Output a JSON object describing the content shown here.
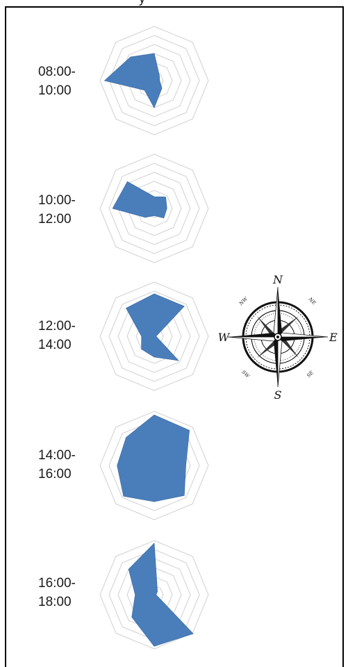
{
  "header_fragment": "y",
  "compass": {
    "labels": {
      "N": "N",
      "E": "E",
      "S": "S",
      "W": "W",
      "NE": "NE",
      "SE": "SE",
      "SW": "SW",
      "NW": "NW"
    }
  },
  "chart_data": [
    {
      "type": "radar",
      "period_line1": "08:00-",
      "period_line2": "10:00",
      "axes": [
        "N",
        "NE",
        "E",
        "SE",
        "S",
        "SW",
        "W",
        "NW"
      ],
      "rmax": 6,
      "values": [
        3.0,
        0.8,
        0.6,
        1.2,
        3.0,
        1.5,
        5.5,
        3.7
      ],
      "color": "#4a7ebb"
    },
    {
      "type": "radar",
      "period_line1": "10:00-",
      "period_line2": "12:00",
      "axes": [
        "N",
        "NE",
        "E",
        "SE",
        "S",
        "SW",
        "W",
        "NW"
      ],
      "rmax": 6,
      "values": [
        1.3,
        1.8,
        1.4,
        1.5,
        0.8,
        1.4,
        4.6,
        4.2
      ],
      "color": "#4a7ebb"
    },
    {
      "type": "radar",
      "period_line1": "12:00-",
      "period_line2": "14:00",
      "axes": [
        "N",
        "NE",
        "E",
        "SE",
        "S",
        "SW",
        "W",
        "NW"
      ],
      "rmax": 6,
      "values": [
        4.7,
        4.7,
        0.2,
        3.8,
        2.3,
        2.0,
        1.4,
        4.4
      ],
      "color": "#4a7ebb"
    },
    {
      "type": "radar",
      "period_line1": "14:00-",
      "period_line2": "16:00",
      "axes": [
        "N",
        "NE",
        "E",
        "SE",
        "S",
        "SW",
        "W",
        "NW"
      ],
      "rmax": 6,
      "values": [
        5.6,
        5.5,
        3.5,
        4.7,
        4.0,
        4.8,
        4.1,
        4.4
      ],
      "color": "#4a7ebb"
    },
    {
      "type": "radar",
      "period_line1": "16:00-",
      "period_line2": "18:00",
      "axes": [
        "N",
        "NE",
        "E",
        "SE",
        "S",
        "SW",
        "W",
        "NW"
      ],
      "rmax": 6,
      "values": [
        5.7,
        0.5,
        0.2,
        6.1,
        5.7,
        3.5,
        2.1,
        4.0
      ],
      "color": "#4a7ebb"
    }
  ]
}
